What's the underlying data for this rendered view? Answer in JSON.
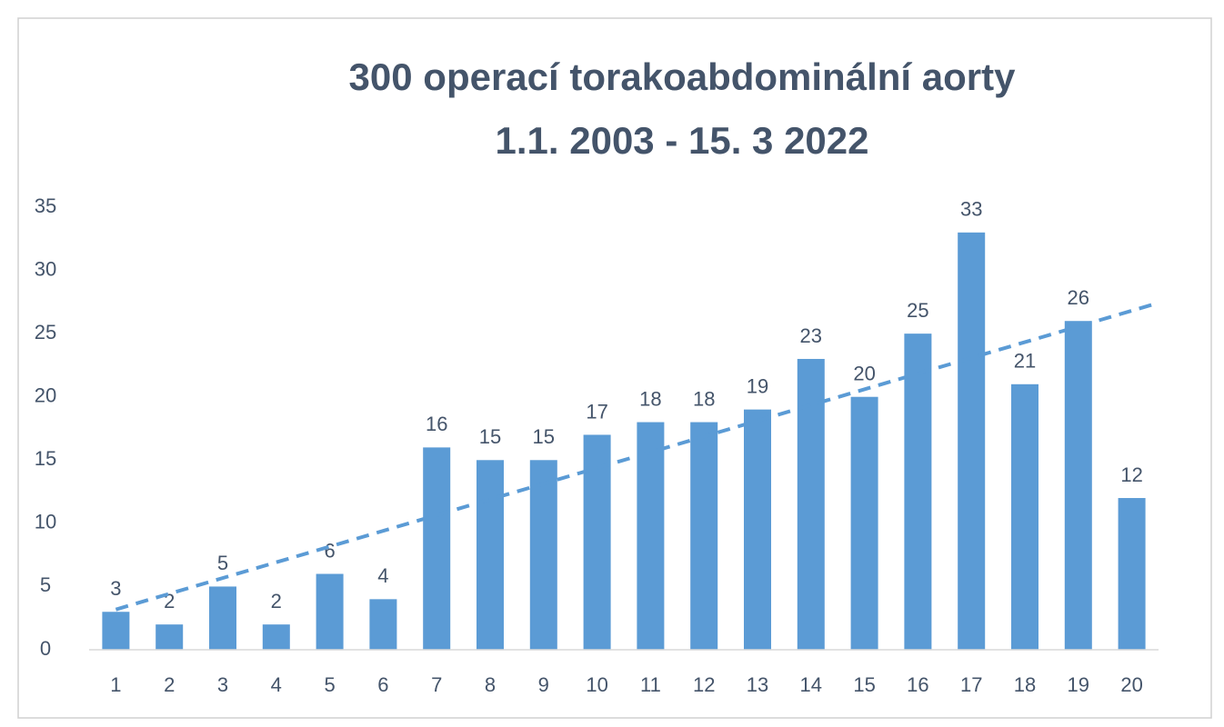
{
  "chart_data": {
    "type": "bar",
    "title": "300 operací torakoabdominální aorty",
    "subtitle": "1.1. 2003 - 15. 3 2022",
    "categories": [
      "1",
      "2",
      "3",
      "4",
      "5",
      "6",
      "7",
      "8",
      "9",
      "10",
      "11",
      "12",
      "13",
      "14",
      "15",
      "16",
      "17",
      "18",
      "19",
      "20"
    ],
    "values": [
      3,
      2,
      5,
      2,
      6,
      4,
      16,
      15,
      15,
      17,
      18,
      18,
      19,
      23,
      20,
      25,
      33,
      21,
      26,
      12
    ],
    "color": "#5b9bd5",
    "ylim": [
      0,
      35
    ],
    "yticks": [
      0,
      5,
      10,
      15,
      20,
      25,
      30,
      35
    ],
    "grid": false,
    "trendline": true,
    "data_labels": true
  }
}
